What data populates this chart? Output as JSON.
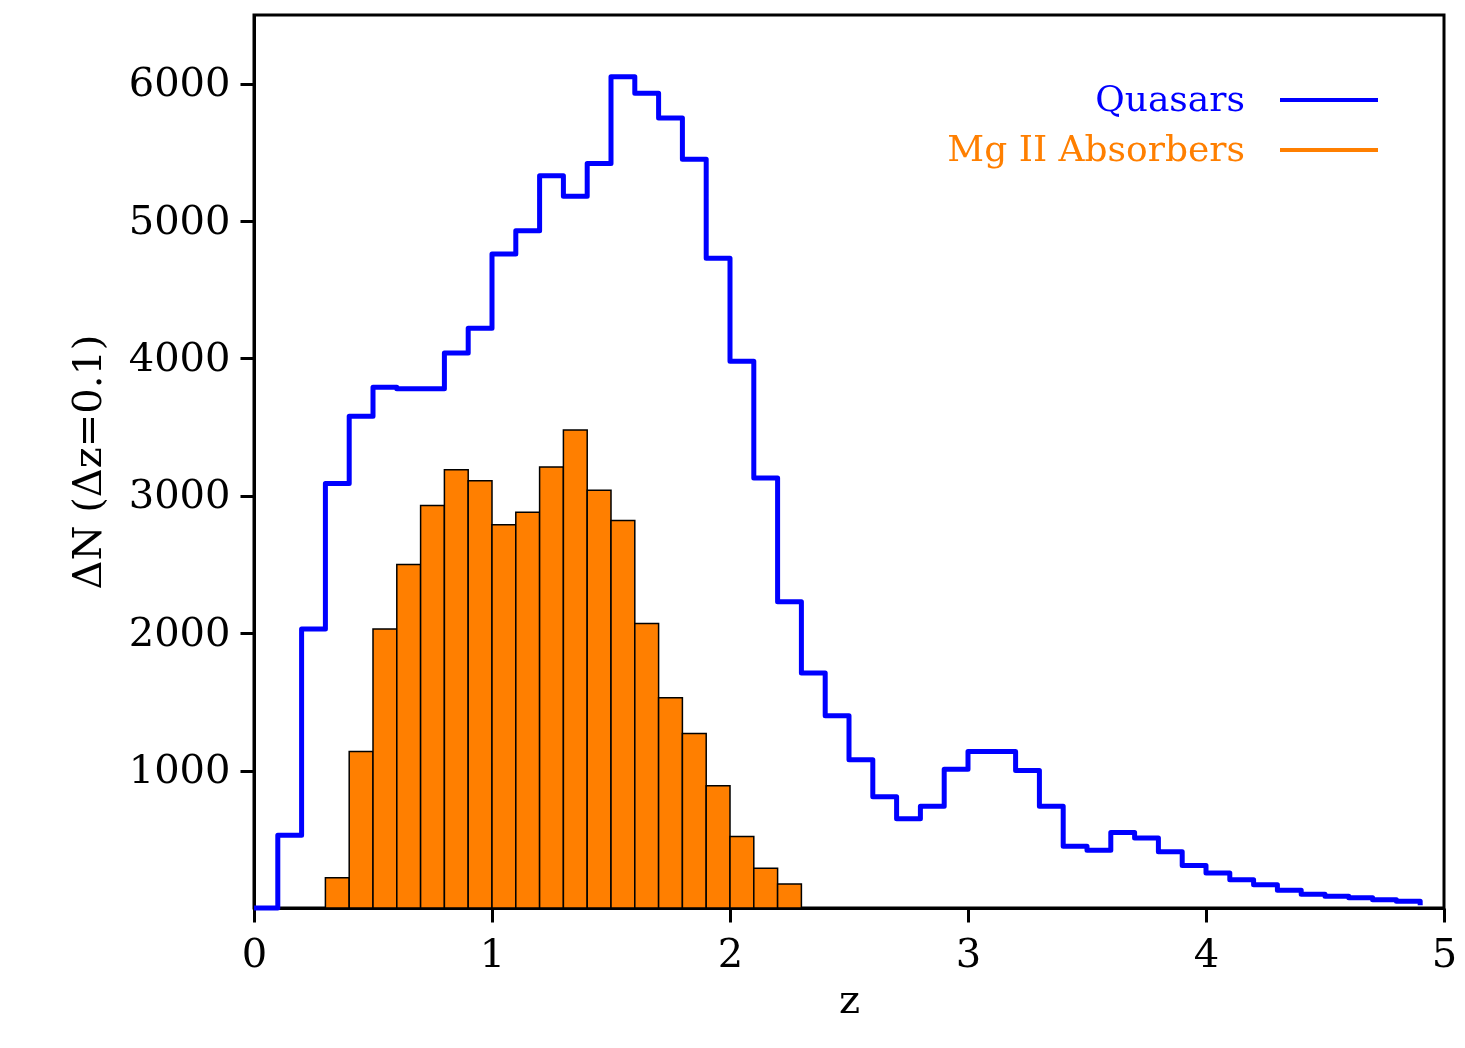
{
  "chart_data": {
    "type": "histogram",
    "xlabel": "z",
    "ylabel": "ΔN (Δz=0.1)",
    "bins": [
      0,
      0.1,
      0.2,
      0.3,
      0.4,
      0.5,
      0.6,
      0.7,
      0.8,
      0.9,
      1.0,
      1.1,
      1.2,
      1.3,
      1.4,
      1.5,
      1.6,
      1.7,
      1.8,
      1.9,
      2.0,
      2.1,
      2.2,
      2.3,
      2.4,
      2.5,
      2.6,
      2.7,
      2.8,
      2.9,
      3.0,
      3.1,
      3.2,
      3.3,
      3.4,
      3.5,
      3.6,
      3.7,
      3.8,
      3.9,
      4.0,
      4.1,
      4.2,
      4.3,
      4.4,
      4.5,
      4.6,
      4.7,
      4.8,
      4.9,
      5.0
    ],
    "series": [
      {
        "name": "Quasars",
        "type": "step",
        "color": "#0000ff",
        "x": [
          0,
          0.1,
          0.2,
          0.3,
          0.4,
          0.5,
          0.6,
          0.7,
          0.8,
          0.9,
          1.0,
          1.1,
          1.2,
          1.3,
          1.4,
          1.5,
          1.6,
          1.7,
          1.8,
          1.9,
          2.0,
          2.1,
          2.2,
          2.3,
          2.4,
          2.5,
          2.6,
          2.7,
          2.8,
          2.9,
          3.0,
          3.1,
          3.2,
          3.3,
          3.4,
          3.5,
          3.6,
          3.7,
          3.8,
          3.9,
          4.0,
          4.1,
          4.2,
          4.3,
          4.4,
          4.5,
          4.6,
          4.7,
          4.8,
          4.9
        ],
        "values": [
          0,
          530,
          2030,
          3090,
          3580,
          3790,
          3780,
          3780,
          4040,
          4220,
          4760,
          4930,
          5330,
          5180,
          5420,
          6050,
          5930,
          5750,
          5450,
          4730,
          3980,
          3130,
          2230,
          1710,
          1400,
          1080,
          810,
          650,
          740,
          1010,
          1140,
          1140,
          1000,
          740,
          450,
          420,
          550,
          510,
          410,
          310,
          255,
          205,
          170,
          130,
          100,
          85,
          75,
          60,
          50,
          20
        ]
      },
      {
        "name": "Mg II Absorbers",
        "color": "#ff7f00",
        "values": [
          null,
          null,
          null,
          220,
          1140,
          2030,
          2500,
          2930,
          3190,
          3110,
          2790,
          2880,
          3210,
          3480,
          3040,
          2820,
          2070,
          1530,
          1270,
          890,
          520,
          290,
          175,
          null,
          null,
          null,
          null,
          null,
          null,
          null,
          null,
          null,
          null,
          null,
          null,
          null,
          null,
          null,
          null,
          null,
          null,
          null,
          null,
          null,
          null,
          null,
          null,
          null,
          null,
          null
        ]
      }
    ],
    "xlim": [
      0,
      5
    ],
    "xticks": [
      0,
      1,
      2,
      3,
      4,
      5
    ],
    "ylim": [
      0,
      6500
    ],
    "yticks": [
      1000,
      2000,
      3000,
      4000,
      5000,
      6000
    ],
    "legend": "top right",
    "grid": false
  }
}
